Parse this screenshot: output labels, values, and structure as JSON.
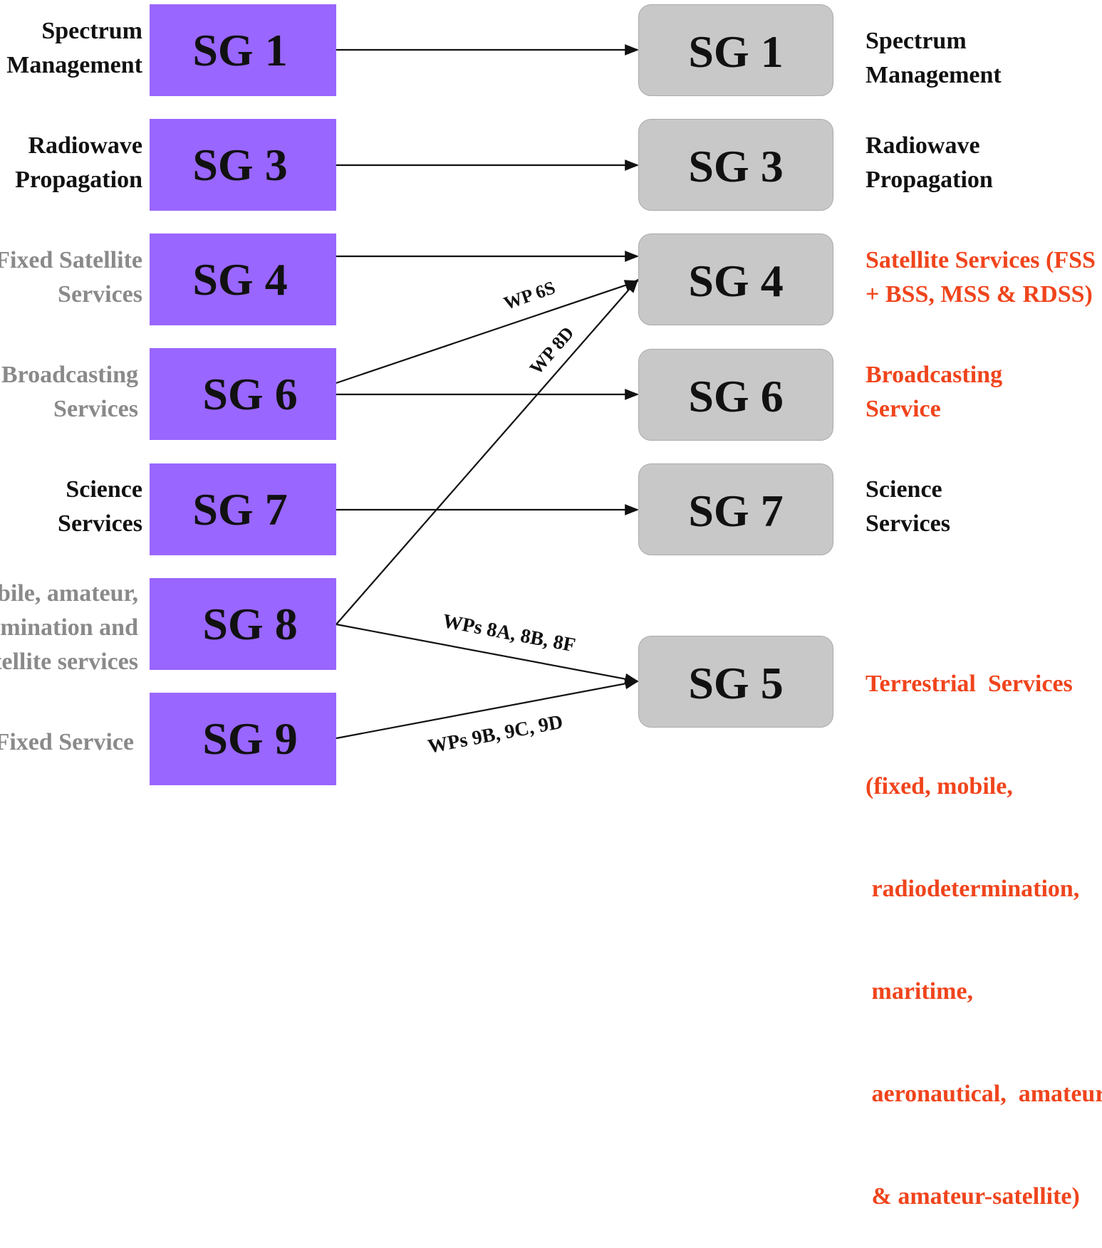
{
  "left_groups": [
    {
      "box": "SG 1",
      "label": [
        "Spectrum",
        "Management"
      ],
      "label_color": "#111111"
    },
    {
      "box": "SG 3",
      "label": [
        "Radiowave",
        "Propagation"
      ],
      "label_color": "#111111"
    },
    {
      "box": "SG 4",
      "label": [
        "Fixed Satellite",
        "Services"
      ],
      "label_color": "#8a8a8a"
    },
    {
      "box": "SG 6",
      "label": [
        "Broadcasting",
        "Services"
      ],
      "label_color": "#8a8a8a"
    },
    {
      "box": "SG 7",
      "label": [
        "Science",
        "Services"
      ],
      "label_color": "#111111"
    },
    {
      "box": "SG 8",
      "label": [
        "bile, amateur,",
        "mination  and",
        "tellite services"
      ],
      "label_color": "#8a8a8a"
    },
    {
      "box": "SG 9",
      "label": [
        "Fixed Service"
      ],
      "label_color": "#8a8a8a"
    }
  ],
  "right_groups": [
    {
      "box": "SG 1",
      "label": [
        "Spectrum",
        "Management"
      ],
      "label_color": "#111111"
    },
    {
      "box": "SG 3",
      "label": [
        "Radiowave",
        "Propagation"
      ],
      "label_color": "#111111"
    },
    {
      "box": "SG 4",
      "label": [
        "Satellite Services (FSS",
        "+ BSS, MSS & RDSS)"
      ],
      "label_color": "#f0441c"
    },
    {
      "box": "SG 6",
      "label": [
        "Broadcasting",
        "Service"
      ],
      "label_color": "#f0441c"
    },
    {
      "box": "SG 7",
      "label": [
        "Science",
        "Services"
      ],
      "label_color": "#111111"
    },
    {
      "box": "SG 5",
      "label": [
        "Terrestrial  Services",
        "(fixed, mobile,",
        " radiodetermination,",
        " maritime,",
        " aeronautical,  amateur",
        " & amateur-satellite)"
      ],
      "label_color": "#f0441c"
    }
  ],
  "connections": [
    {
      "from": "SG 1",
      "to": "SG 1",
      "label": ""
    },
    {
      "from": "SG 3",
      "to": "SG 3",
      "label": ""
    },
    {
      "from": "SG 4",
      "to": "SG 4",
      "label": ""
    },
    {
      "from": "SG 6",
      "to": "SG 4",
      "label": "WP 6S"
    },
    {
      "from": "SG 6",
      "to": "SG 6",
      "label": ""
    },
    {
      "from": "SG 7",
      "to": "SG 7",
      "label": ""
    },
    {
      "from": "SG 8",
      "to": "SG 4",
      "label": "WP 8D"
    },
    {
      "from": "SG 8",
      "to": "SG 5",
      "label": "WPs 8A, 8B, 8F"
    },
    {
      "from": "SG 9",
      "to": "SG 5",
      "label": "WPs 9B, 9C, 9D"
    }
  ],
  "colors": {
    "old_box": "#9966ff",
    "new_box": "#c8c8c8",
    "highlight": "#f0441c",
    "muted": "#8a8a8a"
  }
}
